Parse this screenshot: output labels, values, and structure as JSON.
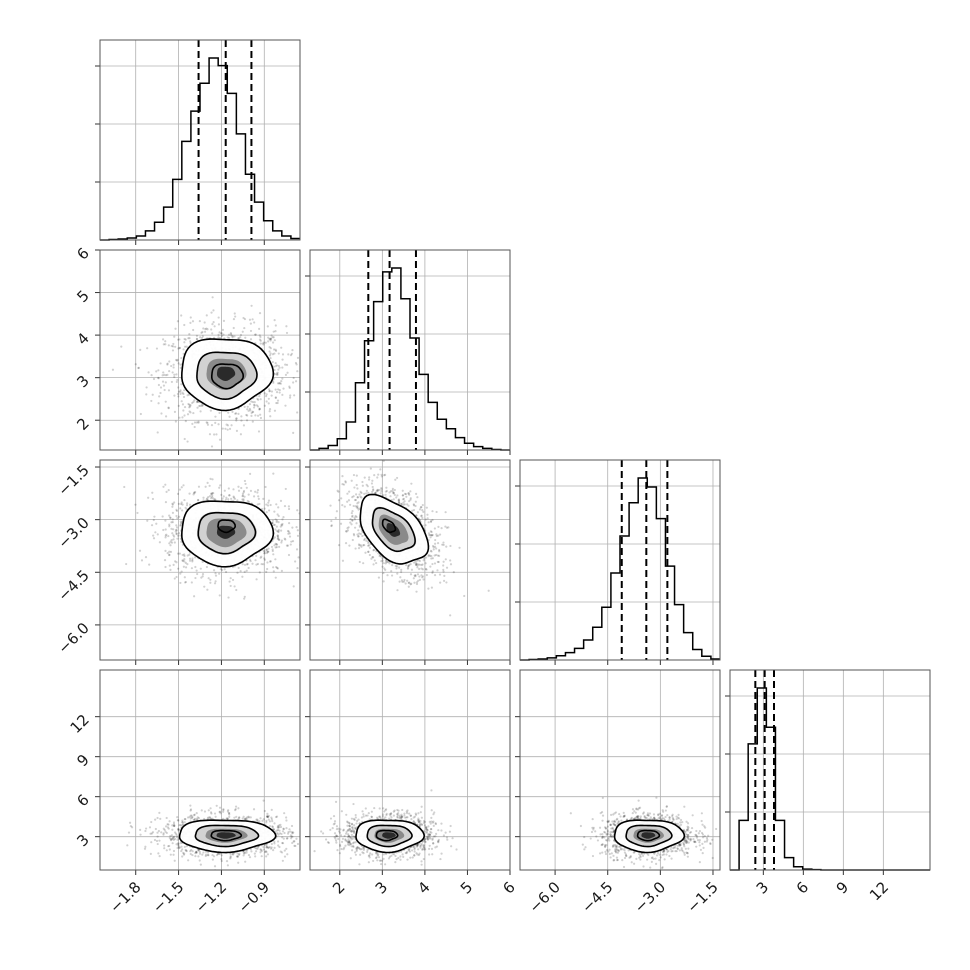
{
  "chart_data": {
    "type": "corner",
    "params": [
      {
        "range": [
          -2.05,
          -0.65
        ],
        "ticks": [
          -1.8,
          -1.5,
          -1.2,
          -0.9
        ],
        "tick_labels": [
          "−1.8",
          "−1.5",
          "−1.2",
          "−0.9"
        ]
      },
      {
        "range": [
          1.3,
          6.0
        ],
        "ticks": [
          2,
          3,
          4,
          5,
          6
        ],
        "tick_labels": [
          "2",
          "3",
          "4",
          "5",
          "6"
        ]
      },
      {
        "range": [
          -7.0,
          -1.3
        ],
        "ticks": [
          -6.0,
          -4.5,
          -3.0,
          -1.5
        ],
        "tick_labels": [
          "−6.0",
          "−4.5",
          "−3.0",
          "−1.5"
        ]
      },
      {
        "range": [
          0.5,
          15.5
        ],
        "ticks": [
          3,
          6,
          9,
          12
        ],
        "tick_labels": [
          "3",
          "6",
          "9",
          "12"
        ]
      }
    ],
    "histograms": [
      {
        "bins": [
          -2.05,
          -0.65
        ],
        "counts": [
          0,
          1,
          2,
          4,
          8,
          18,
          35,
          65,
          120,
          195,
          255,
          310,
          360,
          345,
          290,
          210,
          130,
          75,
          38,
          18,
          8,
          3
        ],
        "quantiles": [
          -1.36,
          -1.17,
          -0.99
        ]
      },
      {
        "bins": [
          1.3,
          6.0
        ],
        "counts": [
          0,
          3,
          8,
          20,
          50,
          120,
          195,
          265,
          318,
          325,
          270,
          200,
          135,
          85,
          55,
          38,
          22,
          12,
          6,
          3,
          1,
          0
        ],
        "quantiles": [
          2.67,
          3.17,
          3.79
        ]
      },
      {
        "bins": [
          -7.0,
          -1.3
        ],
        "counts": [
          0,
          1,
          2,
          4,
          8,
          14,
          22,
          38,
          62,
          100,
          165,
          235,
          298,
          345,
          328,
          268,
          178,
          105,
          52,
          20,
          7,
          2
        ],
        "quantiles": [
          -4.1,
          -3.4,
          -2.8
        ]
      },
      {
        "bins": [
          0.5,
          15.5
        ],
        "counts": [
          0,
          120,
          305,
          440,
          345,
          120,
          30,
          8,
          2,
          1,
          0,
          0,
          0,
          0,
          0,
          0,
          0,
          0,
          0,
          0,
          0,
          0
        ],
        "quantiles": [
          2.4,
          3.1,
          3.8
        ]
      }
    ],
    "pairs": [
      {
        "x": 0,
        "y": 1,
        "mean": [
          -1.17,
          3.1
        ],
        "sd": [
          0.2,
          0.52
        ],
        "rho": 0.0,
        "contour_scales": [
          0.55,
          1.05,
          1.6
        ],
        "contour_shift": [
          [
            0.02,
            -0.05
          ],
          [
            0.0,
            -0.02
          ],
          [
            0.0,
            0.02
          ]
        ]
      },
      {
        "x": 0,
        "y": 2,
        "mean": [
          -1.17,
          -3.35
        ],
        "sd": [
          0.2,
          0.58
        ],
        "rho": 0.0,
        "contour_scales": [
          0.3,
          1.0,
          1.6
        ],
        "contour_shift": [
          [
            0.01,
            0.15
          ],
          [
            0.0,
            0.0
          ],
          [
            0.0,
            0.0
          ]
        ]
      },
      {
        "x": 1,
        "y": 2,
        "mean": [
          3.25,
          -3.3
        ],
        "sd": [
          0.5,
          0.6
        ],
        "rho": -0.45,
        "contour_scales": [
          0.3,
          1.0,
          1.6
        ],
        "contour_shift": [
          [
            -0.1,
            0.1
          ],
          [
            0.0,
            0.0
          ],
          [
            0.0,
            0.0
          ]
        ]
      },
      {
        "x": 0,
        "y": 3,
        "mean": [
          -1.17,
          3.1
        ],
        "sd": [
          0.21,
          0.75
        ],
        "rho": 0.0,
        "contour_scales": [
          0.5,
          1.05,
          1.6
        ],
        "contour_shift": [
          [
            0.0,
            0.0
          ],
          [
            0.0,
            0.0
          ],
          [
            0.0,
            0.0
          ]
        ]
      },
      {
        "x": 1,
        "y": 3,
        "mean": [
          3.15,
          3.1
        ],
        "sd": [
          0.5,
          0.75
        ],
        "rho": 0.0,
        "contour_scales": [
          0.5,
          1.05,
          1.6
        ],
        "contour_shift": [
          [
            -0.05,
            0.0
          ],
          [
            0.0,
            0.0
          ],
          [
            0.0,
            0.0
          ]
        ]
      },
      {
        "x": 2,
        "y": 3,
        "mean": [
          -3.35,
          3.1
        ],
        "sd": [
          0.62,
          0.75
        ],
        "rho": 0.0,
        "contour_scales": [
          0.5,
          1.05,
          1.6
        ],
        "contour_shift": [
          [
            0.0,
            0.0
          ],
          [
            0.0,
            0.0
          ],
          [
            0.0,
            0.0
          ]
        ]
      }
    ],
    "grid": true,
    "hist_style": "step",
    "quantile_style": "dashed"
  }
}
